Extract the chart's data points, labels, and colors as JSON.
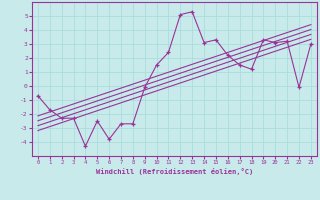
{
  "xlabel": "Windchill (Refroidissement éolien,°C)",
  "bg_color": "#c8eaea",
  "line_color": "#993399",
  "grid_color": "#aadddd",
  "x_data": [
    0,
    1,
    2,
    3,
    4,
    5,
    6,
    7,
    8,
    9,
    10,
    11,
    12,
    13,
    14,
    15,
    16,
    17,
    18,
    19,
    20,
    21,
    22,
    23
  ],
  "y_data": [
    -0.7,
    -1.7,
    -2.3,
    -2.3,
    -4.3,
    -2.5,
    -3.8,
    -2.7,
    -2.7,
    -0.1,
    1.5,
    2.4,
    5.1,
    5.3,
    3.1,
    3.3,
    2.2,
    1.5,
    1.2,
    3.3,
    3.1,
    3.2,
    -0.1,
    3.0
  ],
  "ylim": [
    -5,
    6
  ],
  "xlim": [
    -0.5,
    23.5
  ],
  "yticks": [
    -4,
    -3,
    -2,
    -1,
    0,
    1,
    2,
    3,
    4,
    5
  ],
  "xticks": [
    0,
    1,
    2,
    3,
    4,
    5,
    6,
    7,
    8,
    9,
    10,
    11,
    12,
    13,
    14,
    15,
    16,
    17,
    18,
    19,
    20,
    21,
    22,
    23
  ],
  "trend_offsets": [
    -0.55,
    -0.2,
    0.15,
    0.5
  ]
}
